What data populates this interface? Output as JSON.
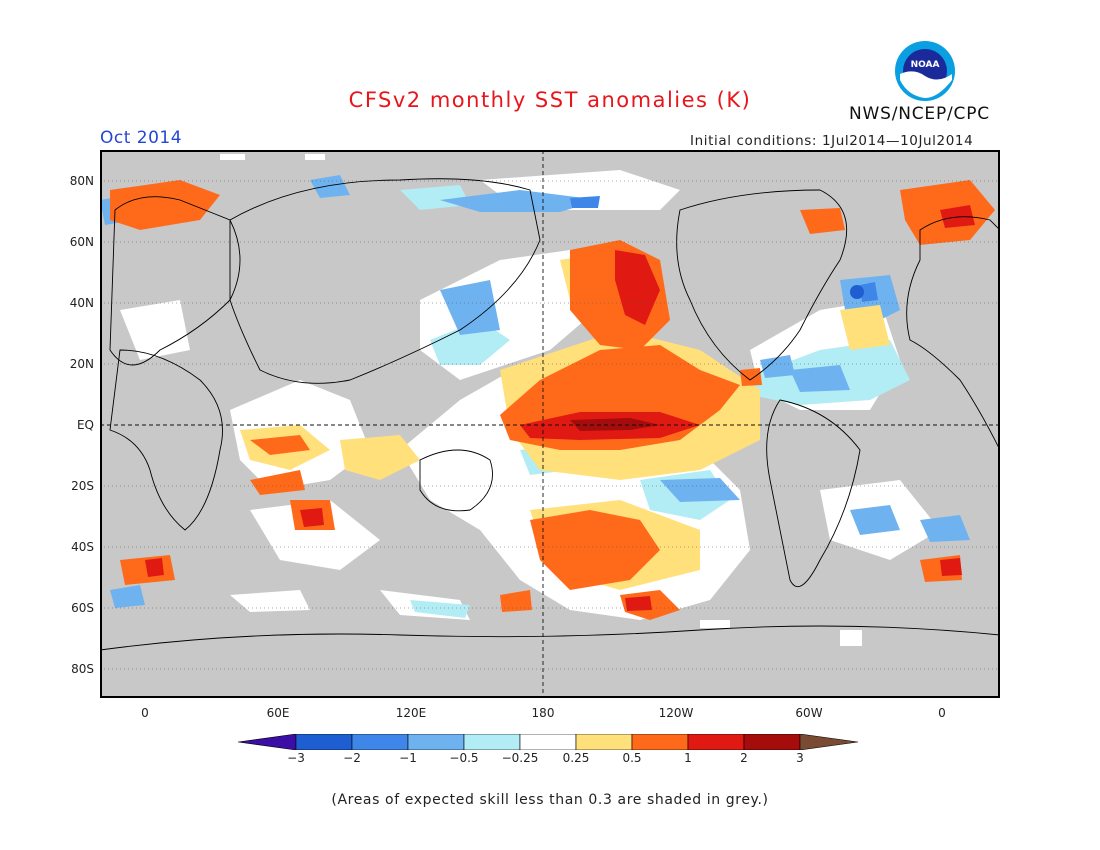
{
  "title": "CFSv2 monthly SST anomalies (K)",
  "valid_month": "Oct 2014",
  "initial_conditions": "Initial conditions: 1Jul2014—10Jul2014",
  "agency": "NWS/NCEP/CPC",
  "logo": {
    "icon": "noaa-logo",
    "text": "NOAA",
    "colors": {
      "outer": "#0a9fe0",
      "inner": "#1a2a9a"
    }
  },
  "map": {
    "land_color": "#c8c8c8",
    "grid_style": "dashed",
    "center_lines": "dashed equator and 180 meridian",
    "lat_labels": [
      "80N",
      "60N",
      "40N",
      "20N",
      "EQ",
      "20S",
      "40S",
      "60S",
      "80S"
    ],
    "lon_labels": [
      "0",
      "60E",
      "120E",
      "180",
      "120W",
      "60W",
      "0"
    ]
  },
  "colorbar": {
    "labels": [
      "−3",
      "−2",
      "−1",
      "−0.5",
      "−0.25",
      "0.25",
      "0.5",
      "1",
      "2",
      "3"
    ],
    "colors": [
      "#3b0fa5",
      "#1f5ed1",
      "#3e86e8",
      "#6eb2f0",
      "#b2ecf4",
      "#ffffff",
      "#ffe07a",
      "#ff6a1a",
      "#e01a12",
      "#a50c0c",
      "#7a4b33"
    ]
  },
  "footnote": "(Areas of expected skill less than 0.3 are shaded in grey.)"
}
